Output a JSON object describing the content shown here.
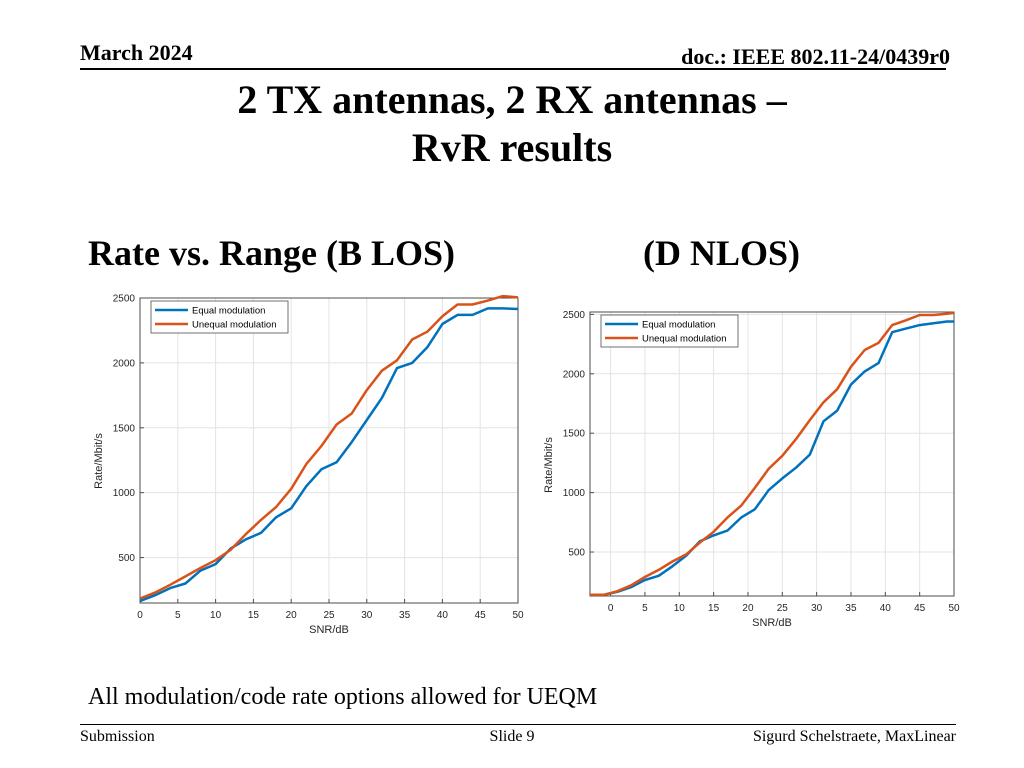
{
  "header": {
    "date": "March 2024",
    "doc": "doc.: IEEE 802.11-24/0439r0"
  },
  "slide": {
    "title_line1": "2 TX antennas, 2 RX antennas –",
    "title_line2": "RvR results",
    "subtitle_left": "Rate vs. Range (B LOS)",
    "subtitle_right": "(D NLOS)",
    "note": "All modulation/code rate options allowed for UEQM"
  },
  "footer": {
    "left": "Submission",
    "center": "Slide 9",
    "right": "Sigurd Schelstraete, MaxLinear"
  },
  "colors": {
    "equal": "#0072bd",
    "unequal": "#d95319"
  },
  "chart_data": [
    {
      "type": "line",
      "title": "",
      "xlabel": "SNR/dB",
      "ylabel": "Rate/Mbit/s",
      "xlim": [
        0,
        50
      ],
      "ylim": [
        150,
        2500
      ],
      "xticks": [
        0,
        5,
        10,
        15,
        20,
        25,
        30,
        35,
        40,
        45,
        50
      ],
      "yticks": [
        500,
        1000,
        1500,
        2000,
        2500
      ],
      "grid": true,
      "legend": "top-left",
      "x": [
        0,
        2,
        4,
        6,
        8,
        10,
        12,
        14,
        16,
        18,
        20,
        22,
        24,
        26,
        28,
        30,
        32,
        34,
        36,
        38,
        40,
        42,
        44,
        46,
        48,
        50
      ],
      "series": [
        {
          "name": "Equal modulation",
          "values": [
            165,
            210,
            265,
            300,
            400,
            450,
            570,
            640,
            690,
            810,
            880,
            1050,
            1180,
            1235,
            1390,
            1560,
            1730,
            1960,
            2000,
            2120,
            2300,
            2370,
            2370,
            2420,
            2420,
            2415
          ]
        },
        {
          "name": "Unequal modulation",
          "values": [
            185,
            230,
            290,
            355,
            420,
            480,
            560,
            680,
            790,
            890,
            1030,
            1220,
            1360,
            1525,
            1610,
            1790,
            1940,
            2020,
            2180,
            2240,
            2360,
            2450,
            2450,
            2480,
            2515,
            2505
          ]
        }
      ]
    },
    {
      "type": "line",
      "title": "",
      "xlabel": "SNR/dB",
      "ylabel": "Rate/Mbit/s",
      "xlim": [
        -3,
        50
      ],
      "ylim": [
        130,
        2520
      ],
      "xticks": [
        0,
        5,
        10,
        15,
        20,
        25,
        30,
        35,
        40,
        45,
        50
      ],
      "yticks": [
        500,
        1000,
        1500,
        2000,
        2500
      ],
      "grid": true,
      "legend": "top-left",
      "x": [
        -3,
        -1,
        1,
        3,
        5,
        7,
        9,
        11,
        13,
        15,
        17,
        19,
        21,
        23,
        25,
        27,
        29,
        31,
        33,
        35,
        37,
        39,
        41,
        43,
        45,
        47,
        49,
        50
      ],
      "series": [
        {
          "name": "Equal modulation",
          "values": [
            140,
            140,
            165,
            205,
            265,
            300,
            380,
            470,
            590,
            640,
            680,
            790,
            860,
            1020,
            1120,
            1210,
            1320,
            1600,
            1690,
            1910,
            2020,
            2090,
            2350,
            2380,
            2410,
            2425,
            2440,
            2440
          ]
        },
        {
          "name": "Unequal modulation",
          "values": [
            140,
            140,
            170,
            220,
            290,
            350,
            420,
            480,
            580,
            670,
            790,
            890,
            1040,
            1200,
            1310,
            1450,
            1610,
            1760,
            1870,
            2060,
            2200,
            2260,
            2410,
            2450,
            2495,
            2495,
            2505,
            2515
          ]
        }
      ]
    }
  ]
}
